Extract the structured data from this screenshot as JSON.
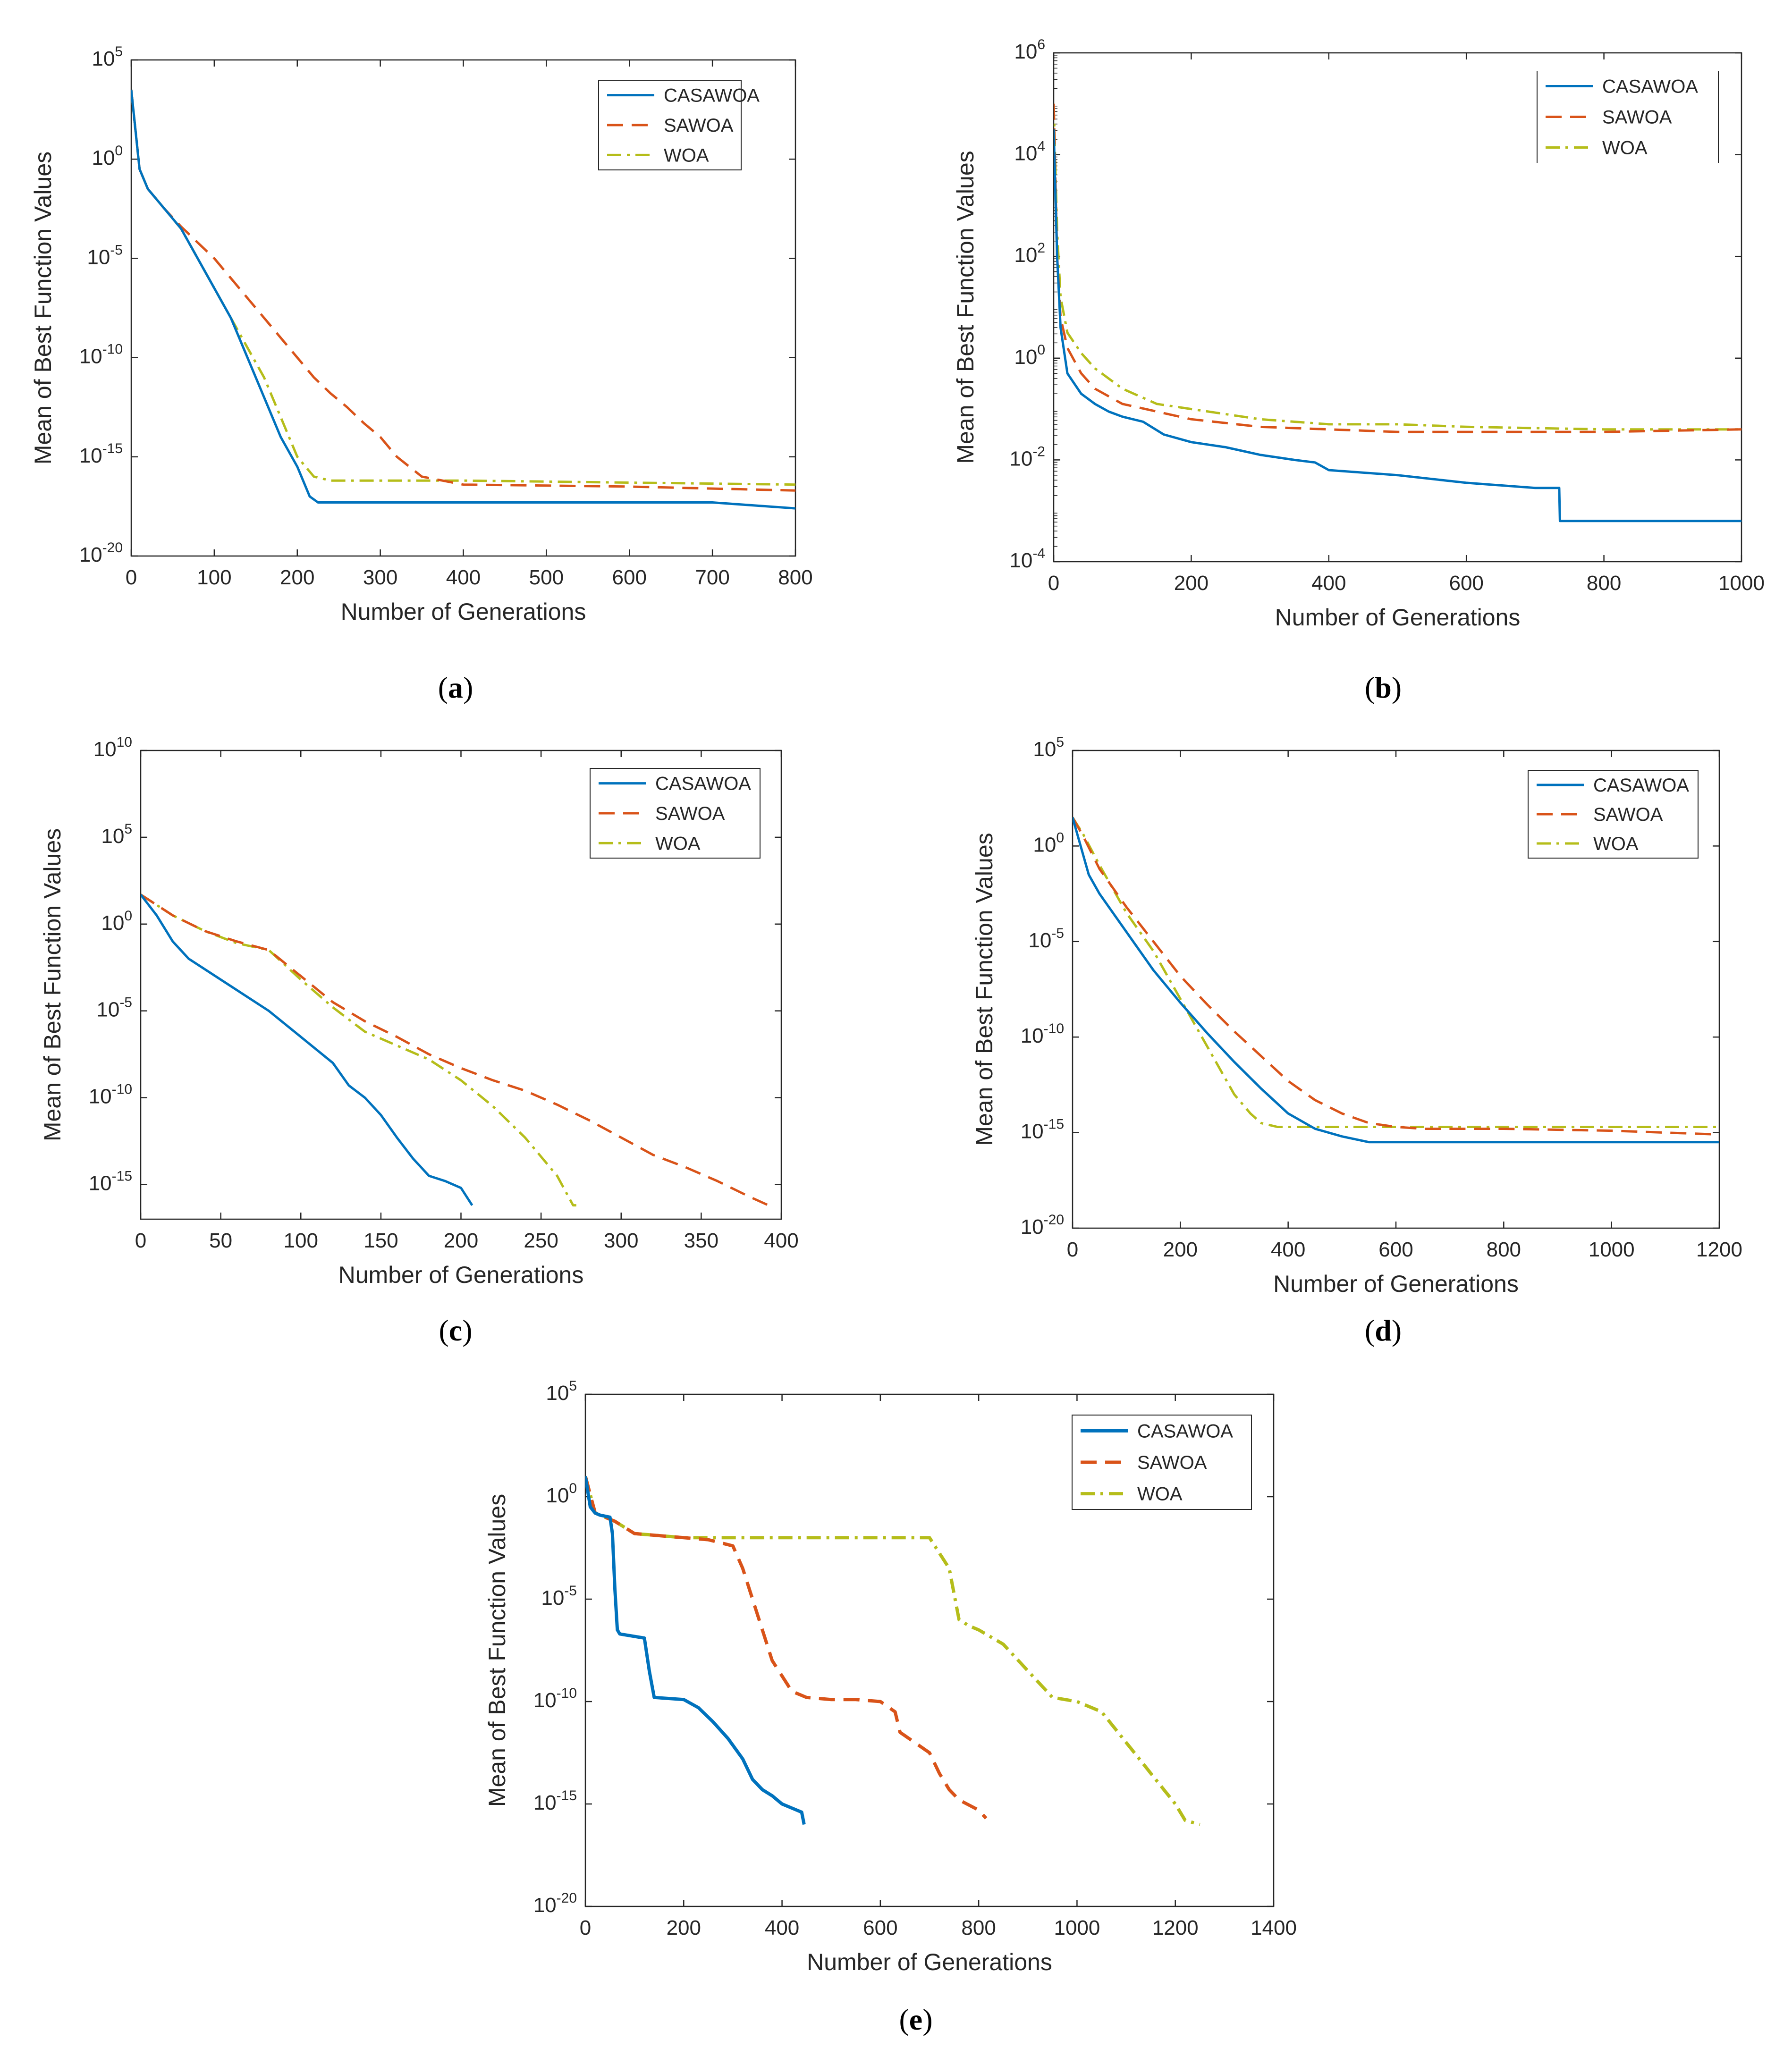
{
  "figure": {
    "series_names": [
      "CASAWOA",
      "SAWOA",
      "WOA"
    ],
    "colors": {
      "CASAWOA": "#0072BD",
      "SAWOA": "#D95319",
      "WOA": "#B5BD1A"
    }
  },
  "chart_data": [
    {
      "id": "a",
      "caption": "a",
      "type": "line",
      "title": "",
      "xlabel": "Number of Generations",
      "ylabel": "Mean of Best Function Values",
      "yscale": "log",
      "xlim": [
        0,
        800
      ],
      "ylim_exp": [
        -20,
        5
      ],
      "xticks": [
        0,
        100,
        200,
        300,
        400,
        500,
        600,
        700,
        800
      ],
      "yticks_exp": [
        5,
        0,
        -5,
        -10,
        -15,
        -20
      ],
      "legend": {
        "position": "top-right",
        "entries": [
          "CASAWOA",
          "SAWOA",
          "WOA"
        ]
      },
      "series": [
        {
          "name": "CASAWOA",
          "x": [
            0,
            5,
            10,
            20,
            40,
            60,
            80,
            100,
            120,
            140,
            160,
            180,
            200,
            215,
            225,
            260,
            400,
            600,
            700,
            800
          ],
          "log10_y": [
            3.5,
            1.5,
            -0.5,
            -1.5,
            -2.5,
            -3.5,
            -5,
            -6.5,
            -8,
            -10,
            -12,
            -14,
            -15.5,
            -17,
            -17.3,
            -17.3,
            -17.3,
            -17.3,
            -17.3,
            -17.6
          ]
        },
        {
          "name": "SAWOA",
          "x": [
            0,
            5,
            10,
            20,
            40,
            60,
            80,
            100,
            120,
            140,
            160,
            180,
            200,
            220,
            240,
            260,
            280,
            300,
            320,
            350,
            400,
            600,
            800
          ],
          "log10_y": [
            3.5,
            1.5,
            -0.5,
            -1.5,
            -2.5,
            -3.4,
            -4.2,
            -5,
            -6,
            -7,
            -8,
            -9,
            -10,
            -11,
            -11.8,
            -12.5,
            -13.3,
            -14,
            -15,
            -16,
            -16.4,
            -16.5,
            -16.7
          ]
        },
        {
          "name": "WOA",
          "x": [
            0,
            5,
            10,
            20,
            40,
            60,
            80,
            100,
            120,
            140,
            160,
            180,
            200,
            220,
            240,
            400,
            600,
            800
          ],
          "log10_y": [
            3.5,
            1.5,
            -0.5,
            -1.5,
            -2.5,
            -3.5,
            -5,
            -6.5,
            -8,
            -9.5,
            -11,
            -13,
            -15,
            -16,
            -16.2,
            -16.2,
            -16.3,
            -16.4
          ]
        }
      ]
    },
    {
      "id": "b",
      "caption": "b",
      "type": "line",
      "title": "",
      "xlabel": "Number of Generations",
      "ylabel": "Mean of Best Function Values",
      "yscale": "log",
      "xlim": [
        0,
        1000
      ],
      "ylim_exp": [
        -4,
        6
      ],
      "xticks": [
        0,
        200,
        400,
        600,
        800,
        1000
      ],
      "yticks_exp": [
        6,
        4,
        2,
        0,
        -2,
        -4
      ],
      "legend": {
        "position": "top-right",
        "entries": [
          "CASAWOA",
          "SAWOA",
          "WOA"
        ]
      },
      "series": [
        {
          "name": "CASAWOA",
          "x": [
            0,
            5,
            10,
            20,
            40,
            60,
            80,
            100,
            130,
            160,
            200,
            250,
            300,
            350,
            380,
            400,
            500,
            600,
            700,
            735,
            736,
            800,
            1000
          ],
          "log10_y": [
            4.5,
            2,
            0.6,
            -0.3,
            -0.7,
            -0.9,
            -1.05,
            -1.15,
            -1.25,
            -1.5,
            -1.65,
            -1.75,
            -1.9,
            -2.0,
            -2.05,
            -2.2,
            -2.3,
            -2.45,
            -2.55,
            -2.55,
            -3.2,
            -3.2,
            -3.2
          ]
        },
        {
          "name": "SAWOA",
          "x": [
            0,
            5,
            10,
            20,
            40,
            60,
            100,
            150,
            200,
            300,
            400,
            500,
            600,
            800,
            1000
          ],
          "log10_y": [
            5,
            2,
            0.8,
            0.2,
            -0.3,
            -0.6,
            -0.9,
            -1.05,
            -1.2,
            -1.35,
            -1.4,
            -1.45,
            -1.45,
            -1.45,
            -1.4
          ]
        },
        {
          "name": "WOA",
          "x": [
            0,
            5,
            10,
            20,
            40,
            60,
            100,
            150,
            200,
            300,
            400,
            500,
            600,
            800,
            1000
          ],
          "log10_y": [
            5,
            2.5,
            1.2,
            0.5,
            0.1,
            -0.2,
            -0.6,
            -0.9,
            -1,
            -1.2,
            -1.3,
            -1.3,
            -1.35,
            -1.4,
            -1.4
          ]
        }
      ]
    },
    {
      "id": "c",
      "caption": "c",
      "type": "line",
      "title": "",
      "xlabel": "Number of Generations",
      "ylabel": "Mean of Best Function Values",
      "yscale": "log",
      "xlim": [
        0,
        400
      ],
      "ylim_exp": [
        -17,
        10
      ],
      "xticks": [
        0,
        50,
        100,
        150,
        200,
        250,
        300,
        350,
        400
      ],
      "yticks_exp": [
        10,
        5,
        0,
        -5,
        -10,
        -15
      ],
      "legend": {
        "position": "top-right",
        "entries": [
          "CASAWOA",
          "SAWOA",
          "WOA"
        ]
      },
      "series": [
        {
          "name": "CASAWOA",
          "x": [
            0,
            10,
            20,
            30,
            40,
            60,
            80,
            100,
            120,
            130,
            140,
            150,
            160,
            170,
            180,
            190,
            200,
            207
          ],
          "log10_y": [
            1.7,
            0.5,
            -1.0,
            -2.0,
            -2.6,
            -3.8,
            -5.0,
            -6.5,
            -8.0,
            -9.3,
            -10.0,
            -11.0,
            -12.3,
            -13.5,
            -14.5,
            -14.8,
            -15.2,
            -16.2
          ]
        },
        {
          "name": "SAWOA",
          "x": [
            0,
            20,
            40,
            60,
            80,
            100,
            120,
            140,
            160,
            180,
            200,
            220,
            240,
            260,
            280,
            300,
            320,
            340,
            360,
            380,
            392
          ],
          "log10_y": [
            1.7,
            0.5,
            -0.4,
            -1.0,
            -1.5,
            -3.0,
            -4.5,
            -5.6,
            -6.5,
            -7.5,
            -8.3,
            -9.0,
            -9.6,
            -10.4,
            -11.3,
            -12.3,
            -13.3,
            -14.0,
            -14.8,
            -15.7,
            -16.2
          ]
        },
        {
          "name": "WOA",
          "x": [
            0,
            20,
            40,
            60,
            80,
            100,
            120,
            140,
            160,
            180,
            200,
            220,
            240,
            260,
            270,
            272
          ],
          "log10_y": [
            1.7,
            0.5,
            -0.4,
            -1.1,
            -1.5,
            -3.2,
            -4.8,
            -6.2,
            -7.0,
            -7.8,
            -9.0,
            -10.5,
            -12.3,
            -14.5,
            -16.2,
            -16.2
          ]
        }
      ]
    },
    {
      "id": "d",
      "caption": "d",
      "type": "line",
      "title": "",
      "xlabel": "Number of Generations",
      "ylabel": "Mean of Best Function Values",
      "yscale": "log",
      "xlim": [
        0,
        1200
      ],
      "ylim_exp": [
        -20,
        5
      ],
      "xticks": [
        0,
        200,
        400,
        600,
        800,
        1000,
        1200
      ],
      "yticks_exp": [
        5,
        0,
        -5,
        -10,
        -15,
        -20
      ],
      "legend": {
        "position": "top-right",
        "entries": [
          "CASAWOA",
          "SAWOA",
          "WOA"
        ]
      },
      "series": [
        {
          "name": "CASAWOA",
          "x": [
            0,
            30,
            50,
            100,
            150,
            200,
            250,
            300,
            350,
            400,
            450,
            500,
            550,
            560,
            700,
            1000,
            1200
          ],
          "log10_y": [
            1.5,
            -1.5,
            -2.5,
            -4.5,
            -6.5,
            -8.2,
            -9.8,
            -11.3,
            -12.7,
            -14.0,
            -14.8,
            -15.2,
            -15.5,
            -15.5,
            -15.5,
            -15.5,
            -15.5
          ]
        },
        {
          "name": "SAWOA",
          "x": [
            0,
            20,
            50,
            100,
            150,
            200,
            250,
            300,
            350,
            400,
            450,
            500,
            550,
            600,
            650,
            800,
            1000,
            1200
          ],
          "log10_y": [
            1.5,
            0.5,
            -1.2,
            -3.2,
            -5.0,
            -6.8,
            -8.3,
            -9.7,
            -11.0,
            -12.3,
            -13.3,
            -14.0,
            -14.5,
            -14.7,
            -14.8,
            -14.8,
            -14.9,
            -15.1
          ]
        },
        {
          "name": "WOA",
          "x": [
            0,
            20,
            50,
            100,
            150,
            200,
            250,
            300,
            330,
            350,
            380,
            400,
            600,
            800,
            1000,
            1200
          ],
          "log10_y": [
            1.5,
            0.6,
            -1.0,
            -3.5,
            -5.5,
            -8.0,
            -10.5,
            -13.0,
            -14.0,
            -14.5,
            -14.7,
            -14.7,
            -14.7,
            -14.7,
            -14.7,
            -14.7
          ]
        }
      ]
    },
    {
      "id": "e",
      "caption": "e",
      "type": "line",
      "title": "",
      "xlabel": "Number of Generations",
      "ylabel": "Mean of Best Function Values",
      "yscale": "log",
      "xlim": [
        0,
        1400
      ],
      "ylim_exp": [
        -20,
        5
      ],
      "xticks": [
        0,
        200,
        400,
        600,
        800,
        1000,
        1200,
        1400
      ],
      "yticks_exp": [
        5,
        0,
        -5,
        -10,
        -15,
        -20
      ],
      "legend": {
        "position": "top-right",
        "entries": [
          "CASAWOA",
          "SAWOA",
          "WOA"
        ]
      },
      "series": [
        {
          "name": "CASAWOA",
          "x": [
            0,
            10,
            20,
            30,
            50,
            55,
            60,
            65,
            70,
            120,
            130,
            140,
            200,
            230,
            260,
            290,
            320,
            340,
            360,
            380,
            400,
            420,
            440,
            445
          ],
          "log10_y": [
            1,
            -0.5,
            -0.8,
            -0.9,
            -1.0,
            -1.8,
            -4.5,
            -6.5,
            -6.7,
            -6.9,
            -8.5,
            -9.8,
            -9.9,
            -10.3,
            -11.0,
            -11.8,
            -12.8,
            -13.8,
            -14.3,
            -14.6,
            -15.0,
            -15.2,
            -15.4,
            -16.0
          ]
        },
        {
          "name": "SAWOA",
          "x": [
            0,
            20,
            60,
            100,
            150,
            200,
            250,
            300,
            320,
            340,
            360,
            380,
            420,
            450,
            500,
            550,
            600,
            630,
            640,
            700,
            720,
            740,
            760,
            800,
            815
          ],
          "log10_y": [
            1,
            -0.8,
            -1.2,
            -1.8,
            -1.9,
            -2.0,
            -2.1,
            -2.4,
            -3.5,
            -5.0,
            -6.5,
            -8.0,
            -9.5,
            -9.8,
            -9.9,
            -9.9,
            -10.0,
            -10.5,
            -11.5,
            -12.5,
            -13.5,
            -14.3,
            -14.8,
            -15.3,
            -15.7
          ]
        },
        {
          "name": "WOA",
          "x": [
            0,
            20,
            60,
            100,
            200,
            300,
            500,
            700,
            740,
            760,
            780,
            800,
            850,
            900,
            950,
            1000,
            1050,
            1100,
            1150,
            1200,
            1220,
            1250
          ],
          "log10_y": [
            1,
            -0.8,
            -1.2,
            -1.8,
            -2.0,
            -2.0,
            -2.0,
            -2.0,
            -3.5,
            -6.0,
            -6.3,
            -6.5,
            -7.2,
            -8.5,
            -9.8,
            -10.0,
            -10.5,
            -12.0,
            -13.5,
            -15.0,
            -15.8,
            -16.0
          ]
        }
      ]
    }
  ]
}
